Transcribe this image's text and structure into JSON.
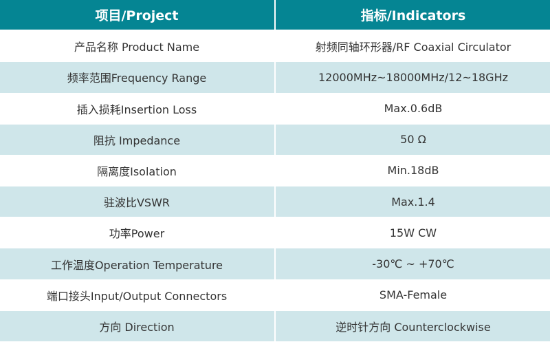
{
  "header": {
    "project": "项目/Project",
    "indicators": "指标/Indicators"
  },
  "colors": {
    "header": "#058593",
    "alt_row": "#cfe6ea"
  },
  "rows": [
    {
      "project": "产品名称 Product Name",
      "indicator": "射频同轴环形器/RF Coaxial Circulator"
    },
    {
      "project": "频率范围Frequency Range",
      "indicator": "12000MHz~18000MHz/12~18GHz"
    },
    {
      "project": "插入损耗Insertion Loss",
      "indicator": "Max.0.6dB"
    },
    {
      "project": "阻抗 Impedance",
      "indicator": "50 Ω"
    },
    {
      "project": "隔离度Isolation",
      "indicator": "Min.18dB"
    },
    {
      "project": "驻波比VSWR",
      "indicator": "Max.1.4"
    },
    {
      "project": "功率Power",
      "indicator": "15W CW"
    },
    {
      "project": "工作温度Operation Temperature",
      "indicator": "-30℃ ~ +70℃"
    },
    {
      "project": "端口接头Input/Output Connectors",
      "indicator": "SMA-Female"
    },
    {
      "project": "方向 Direction",
      "indicator": "逆时针方向 Counterclockwise"
    }
  ]
}
